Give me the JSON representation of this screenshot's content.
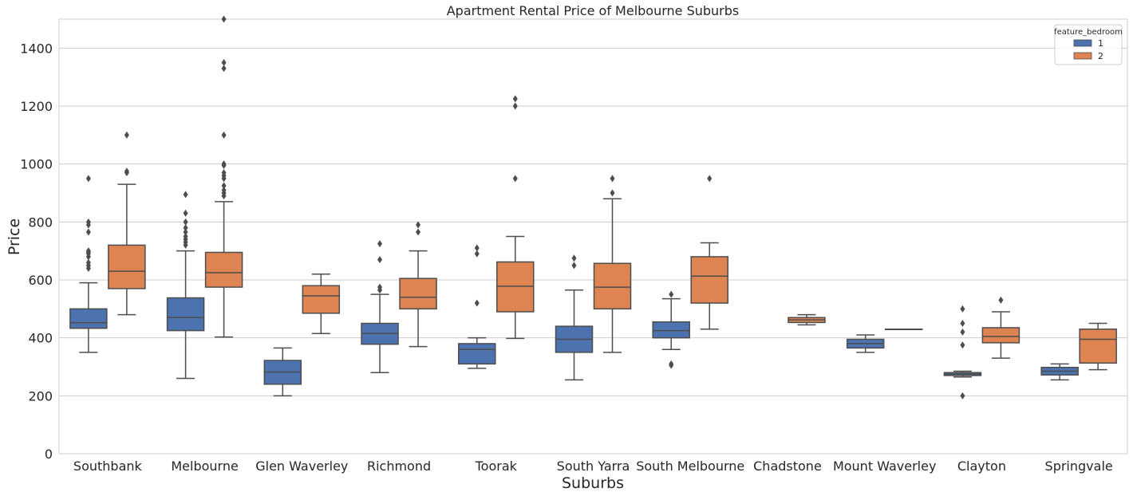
{
  "chart_data": {
    "type": "box",
    "title": "Apartment Rental Price of Melbourne Suburbs",
    "xlabel": "Suburbs",
    "ylabel": "Price",
    "ylim": [
      0,
      1500
    ],
    "yticks": [
      0,
      200,
      400,
      600,
      800,
      1000,
      1200,
      1400
    ],
    "grid": "horizontal",
    "legend": {
      "title": "feature_bedroom",
      "position": "top-right",
      "entries": [
        "1",
        "2"
      ]
    },
    "categories": [
      "Southbank",
      "Melbourne",
      "Glen Waverley",
      "Richmond",
      "Toorak",
      "South Yarra",
      "South Melbourne",
      "Chadstone",
      "Mount Waverley",
      "Clayton",
      "Springvale"
    ],
    "series": [
      {
        "name": "1",
        "color": "#4c72b0",
        "boxes": [
          {
            "whislo": 350,
            "q1": 433,
            "med": 452,
            "q3": 500,
            "whishi": 590,
            "fliers": [
              640,
              650,
              660,
              680,
              690,
              695,
              700,
              765,
              790,
              800,
              950
            ]
          },
          {
            "whislo": 260,
            "q1": 425,
            "med": 470,
            "q3": 538,
            "whishi": 700,
            "fliers": [
              720,
              730,
              740,
              750,
              765,
              780,
              800,
              830,
              895
            ]
          },
          {
            "whislo": 200,
            "q1": 240,
            "med": 282,
            "q3": 322,
            "whishi": 365,
            "fliers": []
          },
          {
            "whislo": 280,
            "q1": 378,
            "med": 415,
            "q3": 450,
            "whishi": 550,
            "fliers": [
              565,
              575,
              670,
              725
            ]
          },
          {
            "whislo": 295,
            "q1": 310,
            "med": 360,
            "q3": 380,
            "whishi": 400,
            "fliers": [
              520,
              690,
              710
            ]
          },
          {
            "whislo": 255,
            "q1": 350,
            "med": 395,
            "q3": 440,
            "whishi": 565,
            "fliers": [
              650,
              675
            ]
          },
          {
            "whislo": 360,
            "q1": 400,
            "med": 425,
            "q3": 455,
            "whishi": 535,
            "fliers": [
              305,
              310,
              550
            ]
          },
          null,
          {
            "whislo": 350,
            "q1": 365,
            "med": 380,
            "q3": 395,
            "whishi": 410,
            "fliers": []
          },
          {
            "whislo": 265,
            "q1": 270,
            "med": 275,
            "q3": 280,
            "whishi": 285,
            "fliers": [
              200,
              375,
              420,
              450,
              500
            ]
          },
          {
            "whislo": 255,
            "q1": 272,
            "med": 285,
            "q3": 298,
            "whishi": 310,
            "fliers": []
          }
        ]
      },
      {
        "name": "2",
        "color": "#dd8452",
        "boxes": [
          {
            "whislo": 480,
            "q1": 570,
            "med": 630,
            "q3": 720,
            "whishi": 930,
            "fliers": [
              970,
              975,
              1100
            ]
          },
          {
            "whislo": 403,
            "q1": 575,
            "med": 625,
            "q3": 695,
            "whishi": 870,
            "fliers": [
              890,
              900,
              910,
              925,
              950,
              960,
              970,
              995,
              1000,
              1100,
              1330,
              1350,
              1500
            ]
          },
          {
            "whislo": 415,
            "q1": 485,
            "med": 545,
            "q3": 580,
            "whishi": 620,
            "fliers": []
          },
          {
            "whislo": 370,
            "q1": 500,
            "med": 540,
            "q3": 605,
            "whishi": 700,
            "fliers": [
              765,
              790
            ]
          },
          {
            "whislo": 398,
            "q1": 490,
            "med": 578,
            "q3": 662,
            "whishi": 750,
            "fliers": [
              950,
              1200,
              1225
            ]
          },
          {
            "whislo": 350,
            "q1": 500,
            "med": 575,
            "q3": 657,
            "whishi": 880,
            "fliers": [
              900,
              950
            ]
          },
          {
            "whislo": 430,
            "q1": 520,
            "med": 613,
            "q3": 680,
            "whishi": 728,
            "fliers": [
              950
            ]
          },
          {
            "whislo": 445,
            "q1": 453,
            "med": 462,
            "q3": 470,
            "whishi": 480,
            "fliers": []
          },
          {
            "whislo": 430,
            "q1": 430,
            "med": 430,
            "q3": 430,
            "whishi": 430,
            "fliers": []
          },
          {
            "whislo": 330,
            "q1": 383,
            "med": 405,
            "q3": 435,
            "whishi": 490,
            "fliers": [
              530
            ]
          },
          {
            "whislo": 290,
            "q1": 313,
            "med": 395,
            "q3": 430,
            "whishi": 450,
            "fliers": []
          }
        ]
      }
    ]
  }
}
